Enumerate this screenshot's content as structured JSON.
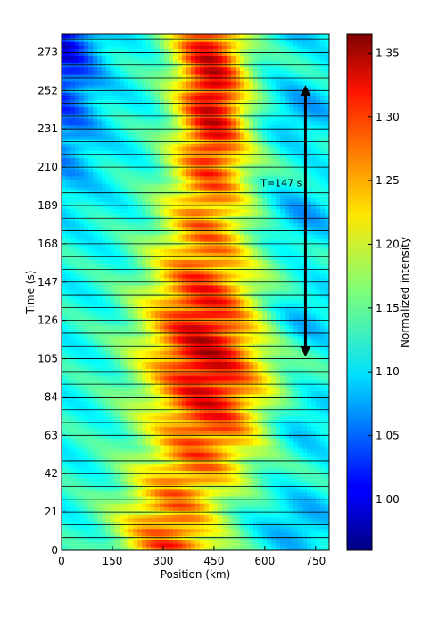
{
  "chart_data": {
    "type": "heatmap",
    "title": "",
    "xlabel": "Position  (km)",
    "ylabel": "Time (s)",
    "xlim": [
      0,
      790
    ],
    "ylim": [
      0,
      283
    ],
    "x_ticks": [
      "0",
      "150",
      "300",
      "450",
      "600",
      "750"
    ],
    "x_tick_values": [
      0,
      150,
      300,
      450,
      600,
      750
    ],
    "y_ticks": [
      "0",
      "21",
      "42",
      "63",
      "84",
      "105",
      "126",
      "147",
      "168",
      "189",
      "210",
      "231",
      "252",
      "273"
    ],
    "y_tick_values": [
      0,
      21,
      42,
      63,
      84,
      105,
      126,
      147,
      168,
      189,
      210,
      231,
      252,
      273
    ],
    "colormap": "jet",
    "colorbar": {
      "label": "Normalized intensity",
      "range": [
        0.96,
        1.365
      ],
      "ticks": [
        "1.00",
        "1.05",
        "1.10",
        "1.15",
        "1.20",
        "1.25",
        "1.30",
        "1.35"
      ],
      "tick_values": [
        1.0,
        1.05,
        1.1,
        1.15,
        1.2,
        1.25,
        1.3,
        1.35
      ]
    },
    "strip_interval_s": 7,
    "annotation": {
      "text": "T=147 s",
      "t_start": 107,
      "t_end": 254,
      "x_km": 720
    }
  }
}
